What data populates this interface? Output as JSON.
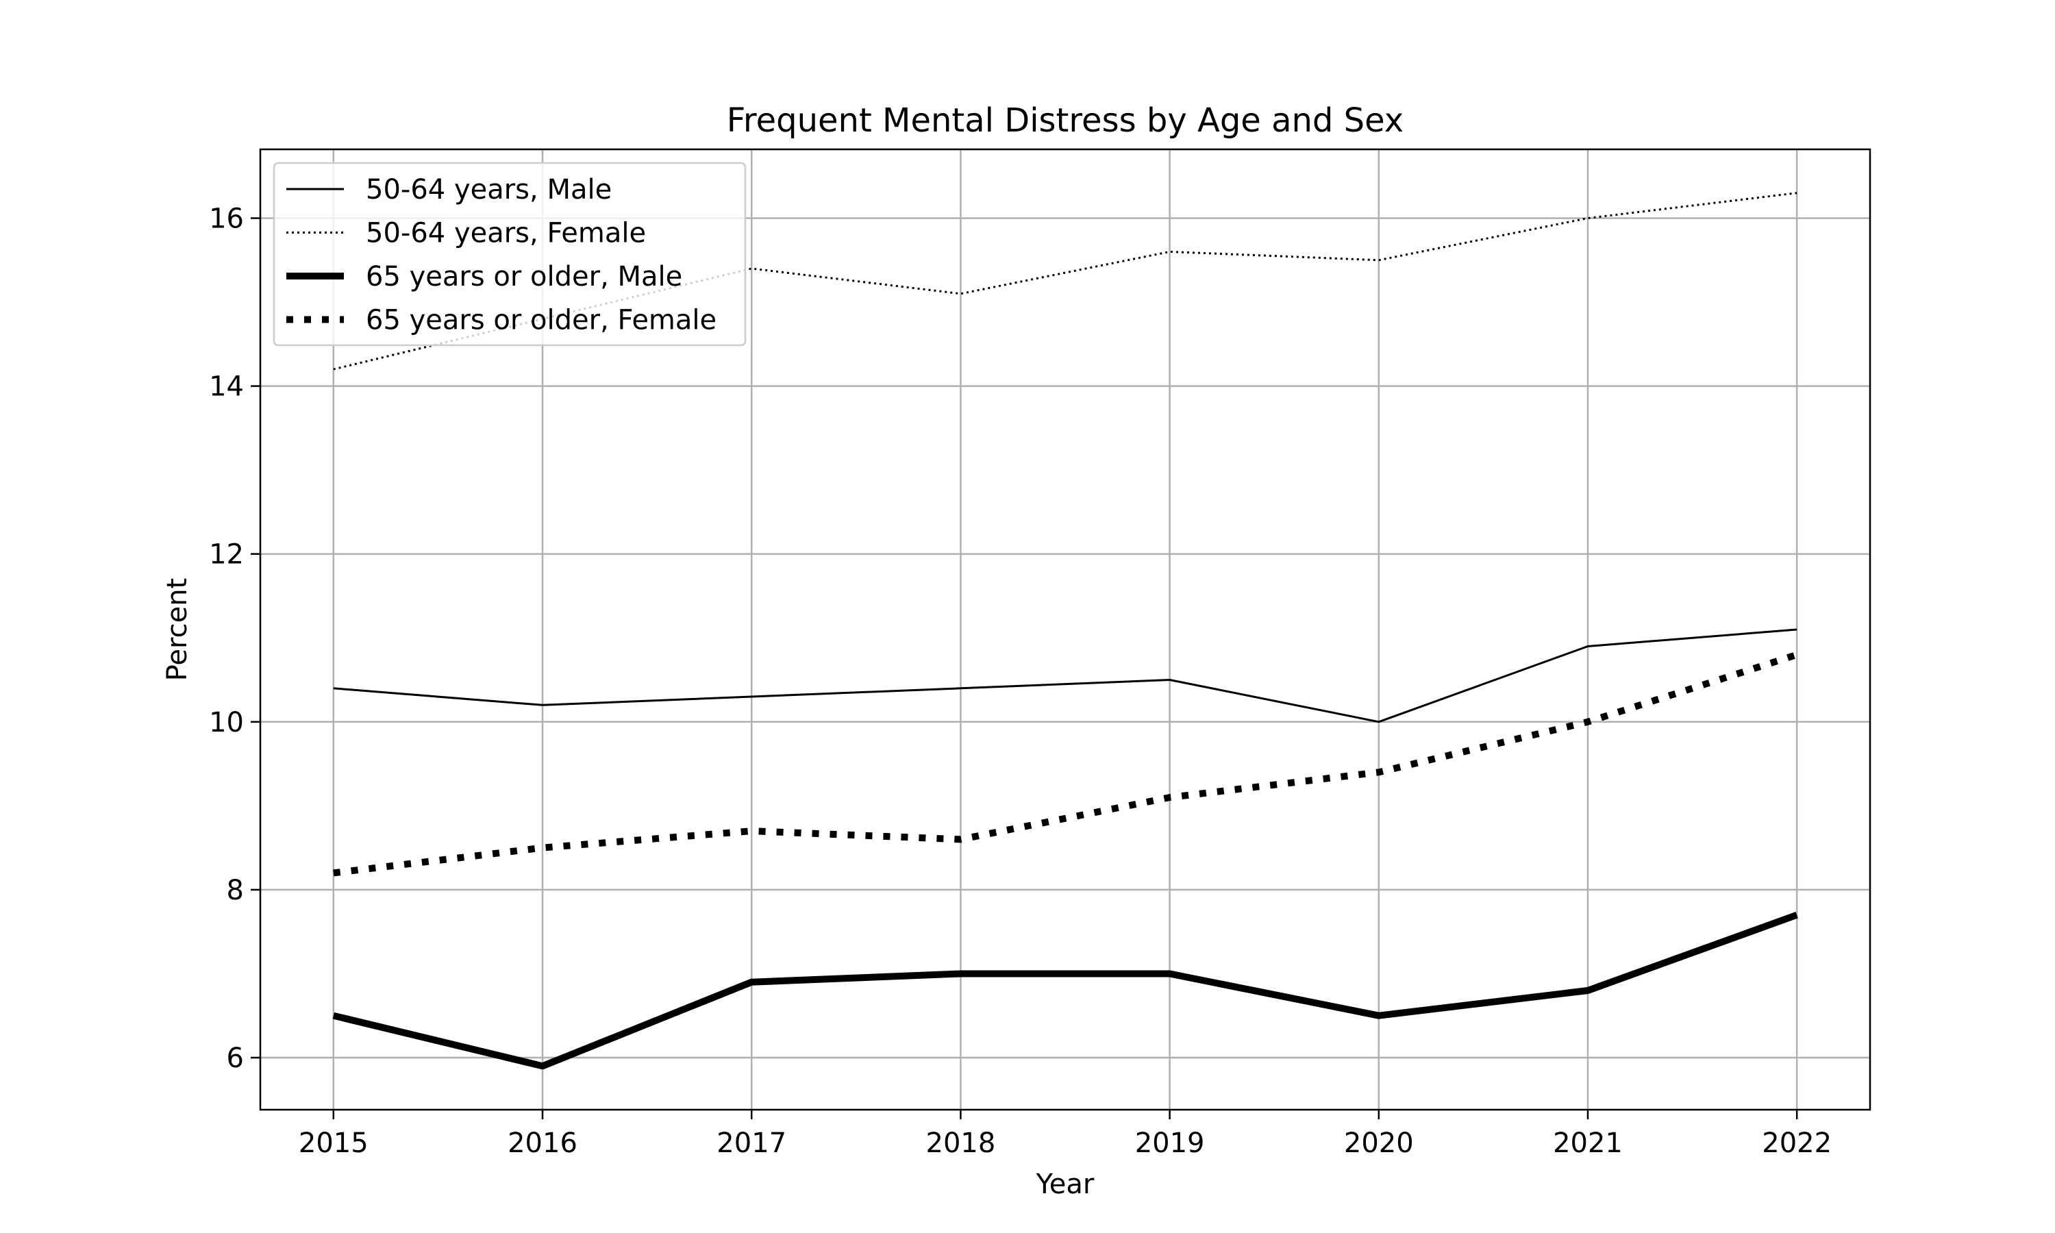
{
  "chart_data": {
    "type": "line",
    "title": "Frequent Mental Distress by Age and Sex",
    "xlabel": "Year",
    "ylabel": "Percent",
    "x": [
      2015,
      2016,
      2017,
      2018,
      2019,
      2020,
      2021,
      2022
    ],
    "x_tick_labels": [
      "2015",
      "2016",
      "2017",
      "2018",
      "2019",
      "2020",
      "2021",
      "2022"
    ],
    "y_ticks": [
      6,
      8,
      10,
      12,
      14,
      16
    ],
    "y_tick_labels": [
      "6",
      "8",
      "10",
      "12",
      "14",
      "16"
    ],
    "xlim": [
      2014.65,
      2022.35
    ],
    "ylim": [
      5.38,
      16.82
    ],
    "grid": true,
    "legend_position": "top-left",
    "series": [
      {
        "name": "50-64 years, Male",
        "values": [
          10.4,
          10.2,
          10.3,
          10.4,
          10.5,
          10.0,
          10.9,
          11.1
        ],
        "style": "solid",
        "weight": "thin",
        "color": "#000000"
      },
      {
        "name": "50-64 years, Female",
        "values": [
          14.2,
          14.8,
          15.4,
          15.1,
          15.6,
          15.5,
          16.0,
          16.3
        ],
        "style": "dotted",
        "weight": "thin",
        "color": "#000000"
      },
      {
        "name": "65 years or older, Male",
        "values": [
          6.5,
          5.9,
          6.9,
          7.0,
          7.0,
          6.5,
          6.8,
          7.7
        ],
        "style": "solid",
        "weight": "thick",
        "color": "#000000"
      },
      {
        "name": "65 years or older, Female",
        "values": [
          8.2,
          8.5,
          8.7,
          8.6,
          9.1,
          9.4,
          10.0,
          10.8
        ],
        "style": "dotted",
        "weight": "thick",
        "color": "#000000"
      }
    ]
  }
}
